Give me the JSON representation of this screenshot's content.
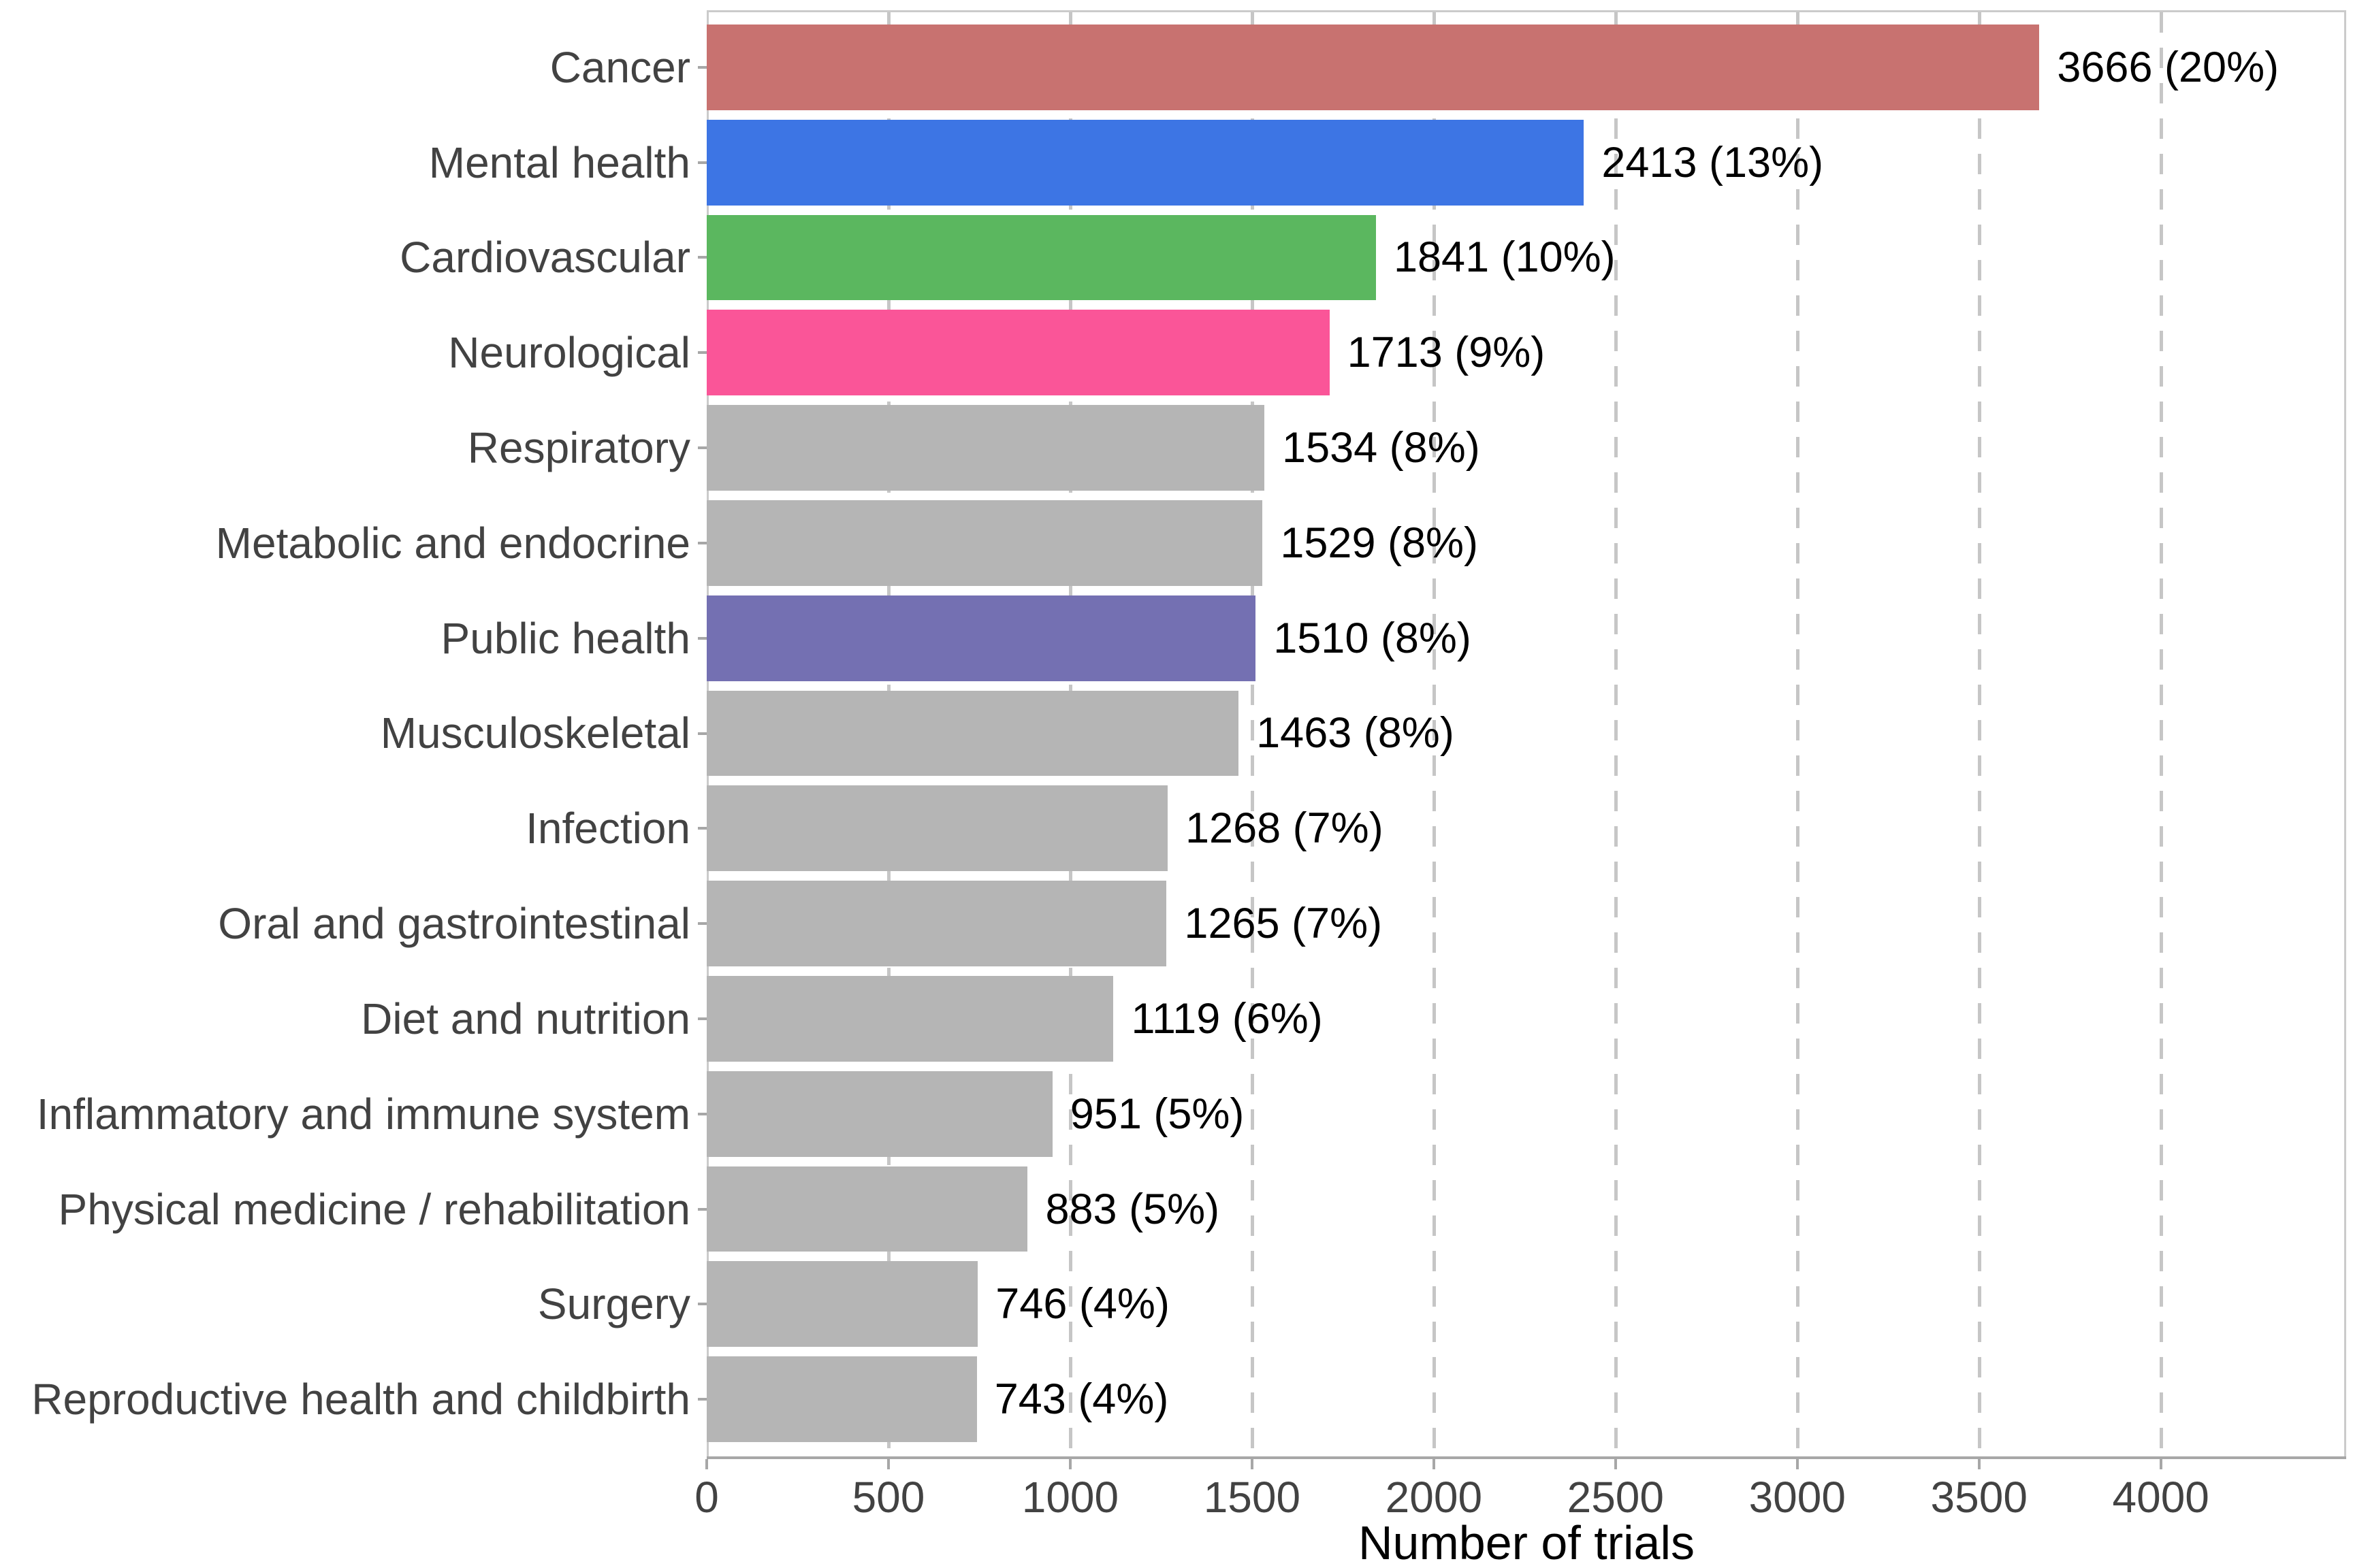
{
  "figure": {
    "background": "#FFFFFF"
  },
  "chart_data": {
    "type": "bar",
    "orientation": "horizontal",
    "title": "",
    "xlabel": "Number of trials",
    "ylabel": "",
    "xlim": [
      0,
      4510
    ],
    "xticks": [
      0,
      500,
      1000,
      1500,
      2000,
      2500,
      3000,
      3500,
      4000
    ],
    "grid": "vertical dashed gridlines at ticks 500-4000, drawn behind bars",
    "legend": "none",
    "categories": [
      "Cancer",
      "Mental health",
      "Cardiovascular",
      "Neurological",
      "Respiratory",
      "Metabolic and endocrine",
      "Public health",
      "Musculoskeletal",
      "Infection",
      "Oral and gastrointestinal",
      "Diet and nutrition",
      "Inflammatory and immune system",
      "Physical medicine / rehabilitation",
      "Surgery",
      "Reproductive health and childbirth"
    ],
    "values": [
      3666,
      2413,
      1841,
      1713,
      1534,
      1529,
      1510,
      1463,
      1268,
      1265,
      1119,
      951,
      883,
      746,
      743
    ],
    "value_labels": [
      "3666 (20%)",
      "2413 (13%)",
      "1841 (10%)",
      "1713 (9%)",
      "1534 (8%)",
      "1529 (8%)",
      "1510 (8%)",
      "1463 (8%)",
      "1268 (7%)",
      "1265 (7%)",
      "1119 (6%)",
      "951 (5%)",
      "883 (5%)",
      "746 (4%)",
      "743 (4%)"
    ],
    "bar_colors": [
      "#C87270",
      "#3D75E4",
      "#5BB75F",
      "#FA5598",
      "#B5B5B5",
      "#B5B5B5",
      "#7470B2",
      "#B5B5B5",
      "#B5B5B5",
      "#B5B5B5",
      "#B5B5B5",
      "#B5B5B5",
      "#B5B5B5",
      "#B5B5B5",
      "#B5B5B5"
    ]
  },
  "colors": {
    "bar_default": "#B5B5B5",
    "accent_cancer": "#C87270",
    "accent_mental_health": "#3D75E4",
    "accent_cardiovascular": "#5BB75F",
    "accent_neurological": "#FA5598",
    "accent_public_health": "#7470B2",
    "gridline": "#C6C6C6",
    "axis_line": "#A7A7A7",
    "panel_border": "#CBCBCB",
    "axis_text": "#424242",
    "value_text": "#000000"
  }
}
